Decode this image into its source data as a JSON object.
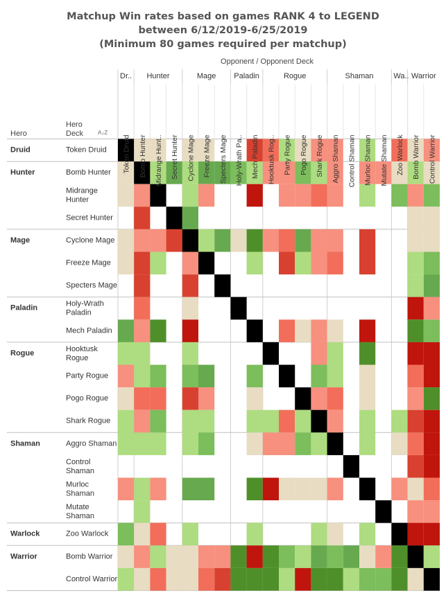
{
  "title_lines": [
    "Matchup Win rates based on games RANK 4 to LEGEND",
    "between 6/12/2019-6/25/2019",
    "(Minimum 80 games required per matchup)"
  ],
  "axis": {
    "top_label": "Opponent  /  Opponent Deck",
    "row_hero_label": "Hero",
    "row_deck_label_1": "Hero",
    "row_deck_label_2": "Deck",
    "sort_icon_text": "A↓Z"
  },
  "colors": {
    "B": "#000000",
    "W": "#ffffff",
    "N": "#e8dcc2",
    "G1": "#aedc80",
    "G2": "#7cbd5c",
    "G3": "#67a94f",
    "G4": "#4f8f2a",
    "R1": "#f7907e",
    "R2": "#f26e5a",
    "R3": "#d8412f",
    "R4": "#c0150c"
  },
  "chart_data": {
    "type": "heatmap",
    "title": "Matchup Win rates based on games RANK 4 to LEGEND between 6/12/2019-6/25/2019 (Minimum 80 games required per matchup)",
    "legend": "none",
    "encoding_note": "B = mirror, W = no data, N = neutral, G1-G4 = favored (light to dark), R1-R4 = unfavored (light to dark)",
    "column_groups": [
      {
        "label": "Dr..",
        "count": 1
      },
      {
        "label": "Hunter",
        "count": 3
      },
      {
        "label": "Mage",
        "count": 3
      },
      {
        "label": "Paladin",
        "count": 2
      },
      {
        "label": "Rogue",
        "count": 4
      },
      {
        "label": "Shaman",
        "count": 4
      },
      {
        "label": "Wa..",
        "count": 1
      },
      {
        "label": "Warrior",
        "count": 2
      }
    ],
    "columns": [
      "Token Druid",
      "Bomb Hunter",
      "Midrange Hunt..",
      "Secret Hunter",
      "Cyclone Mage",
      "Freeze Mage",
      "Specters Mage",
      "Holy-Wrath Pa..",
      "Mech Paladin",
      "Hooktusk Rog..",
      "Party Rogue",
      "Pogo Rogue",
      "Shark Rogue",
      "Aggro Shaman",
      "Control Shaman",
      "Murloc Shaman",
      "Mutate Shaman",
      "Zoo Warlock",
      "Bomb Warrior",
      "Control Warrior"
    ],
    "row_groups": [
      {
        "label": "Druid",
        "count": 1
      },
      {
        "label": "Hunter",
        "count": 3
      },
      {
        "label": "Mage",
        "count": 3
      },
      {
        "label": "Paladin",
        "count": 2
      },
      {
        "label": "Rogue",
        "count": 4
      },
      {
        "label": "Shaman",
        "count": 4
      },
      {
        "label": "Warlock",
        "count": 1
      },
      {
        "label": "Warrior",
        "count": 2
      }
    ],
    "rows": [
      {
        "label": [
          "Token Druid"
        ],
        "cells": [
          "B",
          "N",
          "N",
          "W",
          "N",
          "N",
          "W",
          "W",
          "R3",
          "R2",
          "G1",
          "N",
          "R1",
          "R1",
          "W",
          "G1",
          "W",
          "R2",
          "N",
          "R1"
        ]
      },
      {
        "label": [
          "Bomb Hunter"
        ],
        "cells": [
          "N",
          "B",
          "G1",
          "G3",
          "G1",
          "G3",
          "G3",
          "G2",
          "G1",
          "R1",
          "R1",
          "G2",
          "G1",
          "R1",
          "W",
          "R1",
          "R1",
          "N",
          "G1",
          "N"
        ]
      },
      {
        "label": [
          "Midrange",
          "Hunter"
        ],
        "cells": [
          "N",
          "R1",
          "B",
          "W",
          "G1",
          "R1",
          "W",
          "W",
          "R4",
          "W",
          "R1",
          "R1",
          "R2",
          "R1",
          "W",
          "G1",
          "W",
          "G2",
          "R1",
          "G2"
        ]
      },
      {
        "label": [
          "Secret Hunter"
        ],
        "cells": [
          "W",
          "R3",
          "W",
          "B",
          "G3",
          "W",
          "W",
          "W",
          "W",
          "W",
          "W",
          "W",
          "W",
          "W",
          "W",
          "W",
          "W",
          "W",
          "N",
          "N"
        ]
      },
      {
        "label": [
          "Cyclone Mage"
        ],
        "cells": [
          "N",
          "R1",
          "R1",
          "R3",
          "B",
          "G1",
          "G3",
          "N",
          "G4",
          "R1",
          "R2",
          "G3",
          "R1",
          "R1",
          "W",
          "R3",
          "W",
          "W",
          "N",
          "N"
        ]
      },
      {
        "label": [
          "Freeze Mage"
        ],
        "cells": [
          "N",
          "R3",
          "G1",
          "W",
          "R1",
          "B",
          "W",
          "W",
          "G1",
          "W",
          "R3",
          "G1",
          "R1",
          "R2",
          "W",
          "R3",
          "W",
          "W",
          "G1",
          "G2"
        ]
      },
      {
        "label": [
          "Specters Mage"
        ],
        "cells": [
          "W",
          "R3",
          "W",
          "W",
          "R3",
          "W",
          "B",
          "W",
          "W",
          "W",
          "W",
          "W",
          "W",
          "W",
          "W",
          "W",
          "W",
          "W",
          "G1",
          "G3"
        ]
      },
      {
        "label": [
          "Holy-Wrath",
          "Paladin"
        ],
        "cells": [
          "W",
          "R2",
          "W",
          "W",
          "N",
          "W",
          "W",
          "B",
          "W",
          "W",
          "W",
          "W",
          "W",
          "W",
          "W",
          "W",
          "W",
          "W",
          "R4",
          "R1"
        ]
      },
      {
        "label": [
          "Mech Paladin"
        ],
        "cells": [
          "G3",
          "R1",
          "G4",
          "W",
          "R4",
          "W",
          "W",
          "W",
          "B",
          "W",
          "R2",
          "N",
          "R1",
          "N",
          "W",
          "R4",
          "W",
          "W",
          "G4",
          "G2"
        ]
      },
      {
        "label": [
          "Hooktusk",
          "Rogue"
        ],
        "cells": [
          "G1",
          "G1",
          "W",
          "W",
          "G1",
          "W",
          "W",
          "W",
          "W",
          "B",
          "W",
          "W",
          "R1",
          "G1",
          "W",
          "G4",
          "W",
          "W",
          "R4",
          "R4"
        ]
      },
      {
        "label": [
          "Party Rogue"
        ],
        "cells": [
          "R1",
          "G1",
          "G2",
          "W",
          "G2",
          "G3",
          "W",
          "W",
          "G2",
          "W",
          "B",
          "W",
          "G2",
          "G1",
          "W",
          "N",
          "W",
          "W",
          "R2",
          "R4"
        ]
      },
      {
        "label": [
          "Pogo Rogue"
        ],
        "cells": [
          "N",
          "R2",
          "R2",
          "W",
          "R3",
          "R1",
          "W",
          "W",
          "N",
          "W",
          "W",
          "B",
          "R1",
          "R2",
          "W",
          "N",
          "W",
          "W",
          "R1",
          "G4"
        ]
      },
      {
        "label": [
          "Shark Rogue"
        ],
        "cells": [
          "G1",
          "R1",
          "G2",
          "W",
          "G1",
          "G1",
          "W",
          "W",
          "G1",
          "G1",
          "R2",
          "G1",
          "B",
          "R1",
          "W",
          "G1",
          "W",
          "G1",
          "R3",
          "R4"
        ]
      },
      {
        "label": [
          "Aggro Shaman"
        ],
        "cells": [
          "G1",
          "G1",
          "G1",
          "W",
          "G1",
          "G2",
          "W",
          "W",
          "N",
          "R1",
          "R1",
          "G2",
          "G1",
          "B",
          "W",
          "G1",
          "W",
          "N",
          "R2",
          "R4"
        ]
      },
      {
        "label": [
          "Control",
          "Shaman"
        ],
        "cells": [
          "W",
          "W",
          "W",
          "W",
          "W",
          "W",
          "W",
          "W",
          "W",
          "W",
          "W",
          "W",
          "W",
          "W",
          "B",
          "W",
          "W",
          "W",
          "R3",
          "R4"
        ]
      },
      {
        "label": [
          "Murloc",
          "Shaman"
        ],
        "cells": [
          "R1",
          "G1",
          "R1",
          "W",
          "G3",
          "G3",
          "W",
          "W",
          "G4",
          "R4",
          "N",
          "N",
          "N",
          "R1",
          "W",
          "B",
          "W",
          "R1",
          "N",
          "R2"
        ]
      },
      {
        "label": [
          "Mutate",
          "Shaman"
        ],
        "cells": [
          "W",
          "G1",
          "W",
          "W",
          "W",
          "W",
          "W",
          "W",
          "W",
          "W",
          "W",
          "W",
          "W",
          "W",
          "W",
          "W",
          "B",
          "W",
          "R1",
          "R1"
        ]
      },
      {
        "label": [
          "Zoo Warlock"
        ],
        "cells": [
          "G2",
          "N",
          "R2",
          "W",
          "G1",
          "W",
          "W",
          "W",
          "G1",
          "W",
          "W",
          "W",
          "G1",
          "N",
          "W",
          "G1",
          "W",
          "B",
          "R4",
          "R4"
        ]
      },
      {
        "label": [
          "Bomb Warrior"
        ],
        "cells": [
          "N",
          "R1",
          "G1",
          "N",
          "N",
          "R1",
          "R1",
          "G4",
          "R4",
          "G4",
          "G2",
          "G1",
          "G3",
          "G2",
          "G3",
          "N",
          "R1",
          "G4",
          "B",
          "G1"
        ]
      },
      {
        "label": [
          "Control Warrior"
        ],
        "cells": [
          "G1",
          "N",
          "R2",
          "N",
          "N",
          "R2",
          "R3",
          "G4",
          "G4",
          "G4",
          "G1",
          "R4",
          "G4",
          "G4",
          "G1",
          "G2",
          "G2",
          "G4",
          "N",
          "B"
        ]
      }
    ]
  }
}
